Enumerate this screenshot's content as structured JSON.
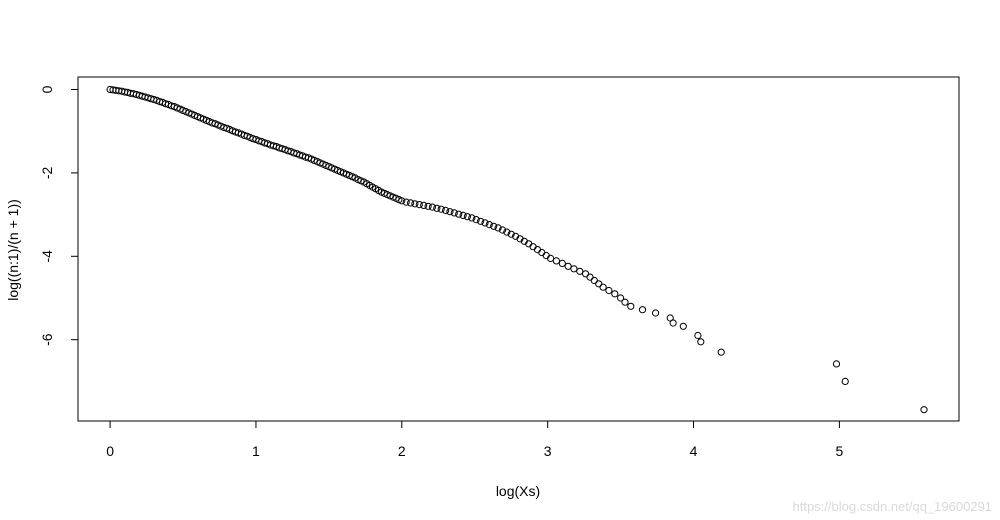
{
  "chart_data": {
    "type": "scatter",
    "title": "",
    "xlabel": "log(Xs)",
    "ylabel": "log((n:1)/(n + 1))",
    "xlim": [
      -0.22,
      5.82
    ],
    "ylim": [
      -7.95,
      0.3
    ],
    "x_ticks": [
      0,
      1,
      2,
      3,
      4,
      5
    ],
    "y_ticks": [
      0,
      -2,
      -4,
      -6
    ],
    "grid": false,
    "marker": "open-circle",
    "points": [
      [
        0.0,
        0.0
      ],
      [
        0.02,
        -0.01
      ],
      [
        0.04,
        -0.02
      ],
      [
        0.06,
        -0.03
      ],
      [
        0.08,
        -0.04
      ],
      [
        0.1,
        -0.06
      ],
      [
        0.12,
        -0.07
      ],
      [
        0.14,
        -0.09
      ],
      [
        0.16,
        -0.1
      ],
      [
        0.18,
        -0.12
      ],
      [
        0.2,
        -0.14
      ],
      [
        0.22,
        -0.16
      ],
      [
        0.24,
        -0.18
      ],
      [
        0.26,
        -0.2
      ],
      [
        0.28,
        -0.22
      ],
      [
        0.3,
        -0.24
      ],
      [
        0.32,
        -0.26
      ],
      [
        0.34,
        -0.29
      ],
      [
        0.36,
        -0.31
      ],
      [
        0.38,
        -0.34
      ],
      [
        0.4,
        -0.36
      ],
      [
        0.42,
        -0.39
      ],
      [
        0.44,
        -0.41
      ],
      [
        0.46,
        -0.44
      ],
      [
        0.48,
        -0.47
      ],
      [
        0.5,
        -0.5
      ],
      [
        0.52,
        -0.53
      ],
      [
        0.54,
        -0.56
      ],
      [
        0.56,
        -0.59
      ],
      [
        0.58,
        -0.62
      ],
      [
        0.6,
        -0.65
      ],
      [
        0.62,
        -0.68
      ],
      [
        0.64,
        -0.71
      ],
      [
        0.66,
        -0.74
      ],
      [
        0.68,
        -0.77
      ],
      [
        0.7,
        -0.8
      ],
      [
        0.72,
        -0.82
      ],
      [
        0.74,
        -0.85
      ],
      [
        0.76,
        -0.88
      ],
      [
        0.78,
        -0.91
      ],
      [
        0.8,
        -0.93
      ],
      [
        0.82,
        -0.96
      ],
      [
        0.84,
        -0.99
      ],
      [
        0.86,
        -1.02
      ],
      [
        0.88,
        -1.04
      ],
      [
        0.9,
        -1.07
      ],
      [
        0.92,
        -1.1
      ],
      [
        0.94,
        -1.12
      ],
      [
        0.96,
        -1.15
      ],
      [
        0.98,
        -1.18
      ],
      [
        1.0,
        -1.2
      ],
      [
        1.02,
        -1.23
      ],
      [
        1.04,
        -1.25
      ],
      [
        1.06,
        -1.28
      ],
      [
        1.08,
        -1.3
      ],
      [
        1.1,
        -1.33
      ],
      [
        1.12,
        -1.35
      ],
      [
        1.14,
        -1.37
      ],
      [
        1.16,
        -1.4
      ],
      [
        1.18,
        -1.42
      ],
      [
        1.2,
        -1.44
      ],
      [
        1.22,
        -1.47
      ],
      [
        1.24,
        -1.49
      ],
      [
        1.26,
        -1.52
      ],
      [
        1.28,
        -1.54
      ],
      [
        1.3,
        -1.57
      ],
      [
        1.32,
        -1.59
      ],
      [
        1.34,
        -1.62
      ],
      [
        1.36,
        -1.64
      ],
      [
        1.38,
        -1.67
      ],
      [
        1.4,
        -1.7
      ],
      [
        1.42,
        -1.73
      ],
      [
        1.44,
        -1.76
      ],
      [
        1.46,
        -1.79
      ],
      [
        1.48,
        -1.82
      ],
      [
        1.5,
        -1.85
      ],
      [
        1.52,
        -1.88
      ],
      [
        1.54,
        -1.91
      ],
      [
        1.56,
        -1.94
      ],
      [
        1.58,
        -1.97
      ],
      [
        1.6,
        -2.0
      ],
      [
        1.62,
        -2.03
      ],
      [
        1.64,
        -2.06
      ],
      [
        1.66,
        -2.09
      ],
      [
        1.68,
        -2.12
      ],
      [
        1.7,
        -2.16
      ],
      [
        1.72,
        -2.19
      ],
      [
        1.74,
        -2.22
      ],
      [
        1.76,
        -2.26
      ],
      [
        1.78,
        -2.3
      ],
      [
        1.8,
        -2.34
      ],
      [
        1.82,
        -2.38
      ],
      [
        1.84,
        -2.42
      ],
      [
        1.86,
        -2.46
      ],
      [
        1.88,
        -2.49
      ],
      [
        1.9,
        -2.52
      ],
      [
        1.92,
        -2.55
      ],
      [
        1.94,
        -2.58
      ],
      [
        1.96,
        -2.61
      ],
      [
        1.98,
        -2.64
      ],
      [
        2.0,
        -2.67
      ],
      [
        2.03,
        -2.7
      ],
      [
        2.06,
        -2.72
      ],
      [
        2.09,
        -2.74
      ],
      [
        2.12,
        -2.76
      ],
      [
        2.15,
        -2.78
      ],
      [
        2.18,
        -2.8
      ],
      [
        2.21,
        -2.82
      ],
      [
        2.24,
        -2.85
      ],
      [
        2.27,
        -2.87
      ],
      [
        2.3,
        -2.9
      ],
      [
        2.33,
        -2.93
      ],
      [
        2.36,
        -2.96
      ],
      [
        2.39,
        -2.99
      ],
      [
        2.42,
        -3.02
      ],
      [
        2.45,
        -3.05
      ],
      [
        2.48,
        -3.08
      ],
      [
        2.51,
        -3.12
      ],
      [
        2.54,
        -3.16
      ],
      [
        2.57,
        -3.2
      ],
      [
        2.6,
        -3.24
      ],
      [
        2.63,
        -3.28
      ],
      [
        2.66,
        -3.32
      ],
      [
        2.69,
        -3.37
      ],
      [
        2.72,
        -3.42
      ],
      [
        2.75,
        -3.47
      ],
      [
        2.78,
        -3.52
      ],
      [
        2.81,
        -3.58
      ],
      [
        2.84,
        -3.64
      ],
      [
        2.87,
        -3.7
      ],
      [
        2.9,
        -3.77
      ],
      [
        2.93,
        -3.84
      ],
      [
        2.96,
        -3.91
      ],
      [
        2.99,
        -3.98
      ],
      [
        3.02,
        -4.05
      ],
      [
        3.06,
        -4.11
      ],
      [
        3.1,
        -4.17
      ],
      [
        3.14,
        -4.24
      ],
      [
        3.18,
        -4.3
      ],
      [
        3.22,
        -4.36
      ],
      [
        3.26,
        -4.42
      ],
      [
        3.29,
        -4.5
      ],
      [
        3.32,
        -4.58
      ],
      [
        3.35,
        -4.66
      ],
      [
        3.38,
        -4.74
      ],
      [
        3.42,
        -4.82
      ],
      [
        3.46,
        -4.9
      ],
      [
        3.5,
        -5.0
      ],
      [
        3.53,
        -5.1
      ],
      [
        3.57,
        -5.2
      ],
      [
        3.65,
        -5.28
      ],
      [
        3.74,
        -5.36
      ],
      [
        3.84,
        -5.48
      ],
      [
        3.86,
        -5.6
      ],
      [
        3.93,
        -5.68
      ],
      [
        4.03,
        -5.9
      ],
      [
        4.05,
        -6.05
      ],
      [
        4.19,
        -6.3
      ],
      [
        4.98,
        -6.58
      ],
      [
        5.04,
        -7.0
      ],
      [
        5.58,
        -7.68
      ]
    ]
  },
  "watermark": "https://blog.csdn.net/qq_19600291"
}
